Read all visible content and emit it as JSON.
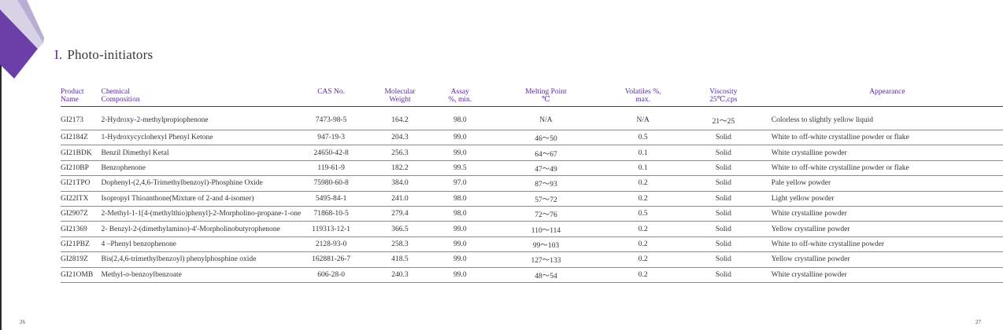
{
  "section": {
    "numeral": "I.",
    "title": "Photo-initiators"
  },
  "headers": [
    [
      "Product",
      "Name"
    ],
    [
      "Chemical",
      "Composition"
    ],
    [
      "",
      "CAS No."
    ],
    [
      "Molecular",
      "Weight"
    ],
    [
      "Assay",
      "%, min."
    ],
    [
      "Melting Point",
      "℃"
    ],
    [
      "Volatiles %,",
      "max."
    ],
    [
      "Viscosity",
      "25℃,cps"
    ],
    [
      "",
      "Appearance"
    ]
  ],
  "rows": [
    [
      "GI2173",
      "2-Hydroxy-2-methylpropiophenone",
      "7473-98-5",
      "164.2",
      "98.0",
      "N/A",
      "N/A",
      "21～25",
      "Colorless to slightly yellow liquid"
    ],
    [
      "GI2184Z",
      "1-Hydroxycyclohexyl Phenyl Ketone",
      "947-19-3",
      "204.3",
      "99.0",
      "46～50",
      "0.5",
      "Solid",
      "White to off-white crystalline powder or flake"
    ],
    [
      "GI21BDK",
      "Benzil Dimethyl Ketal",
      "24650-42-8",
      "256.3",
      "99.0",
      "64～67",
      "0.1",
      "Solid",
      "White crystalline powder"
    ],
    [
      "GI210BP",
      "Benzophenone",
      "119-61-9",
      "182.2",
      "99.5",
      "47～49",
      "0.1",
      "Solid",
      "White to off-white crystalline powder or flake"
    ],
    [
      "GI21TPO",
      "Dophenyl-(2,4,6-Trimethylbenzoyl)-Phosphine Oxide",
      "75980-60-8",
      "384.0",
      "97.0",
      "87～93",
      "0.2",
      "Solid",
      "Pale yellow powder"
    ],
    [
      "GI22ITX",
      "Isopropyl Thioanthone(Mixture of 2-and 4-isomer)",
      "5495-84-1",
      "241.0",
      "98.0",
      "57～72",
      "0.2",
      "Solid",
      "Light yellow powder"
    ],
    [
      "GI2907Z",
      "2-Methyl-1-1[4-(methylthio)phenyl]-2-Morpholino-propane-1-one",
      "71868-10-5",
      "279.4",
      "98.0",
      "72～76",
      "0.5",
      "Solid",
      "White crystalline powder"
    ],
    [
      "GI21369",
      "2- Benzyl-2-(dimethylamino)-4'-Morpholinobutyrophenone",
      "119313-12-1",
      "366.5",
      "99.0",
      "110～114",
      "0.2",
      "Solid",
      "Yellow crystalline powder"
    ],
    [
      "GI21PBZ",
      "4 –Phenyl benzophenone",
      "2128-93-0",
      "258.3",
      "99.0",
      "99～103",
      "0.2",
      "Solid",
      "White to off-white crystalline powder"
    ],
    [
      "GI2819Z",
      "Bis(2,4,6-trimethylbenzoyl) phenylphosphine oxide",
      "162881-26-7",
      "418.5",
      "99.0",
      "127～133",
      "0.2",
      "Solid",
      "Yellow crystalline powder"
    ],
    [
      "GI21OMB",
      "Methyl-o-benzoylbenzoate",
      "606-28-0",
      "240.3",
      "99.0",
      "48～54",
      "0.2",
      "Solid",
      "White crystalline powder"
    ]
  ],
  "page_numbers": {
    "left": "26",
    "right": "27"
  },
  "colors": {
    "accent": "#5b2a9c",
    "corner_light": "#c8c0dc",
    "corner_dark": "#6a3fa8"
  }
}
